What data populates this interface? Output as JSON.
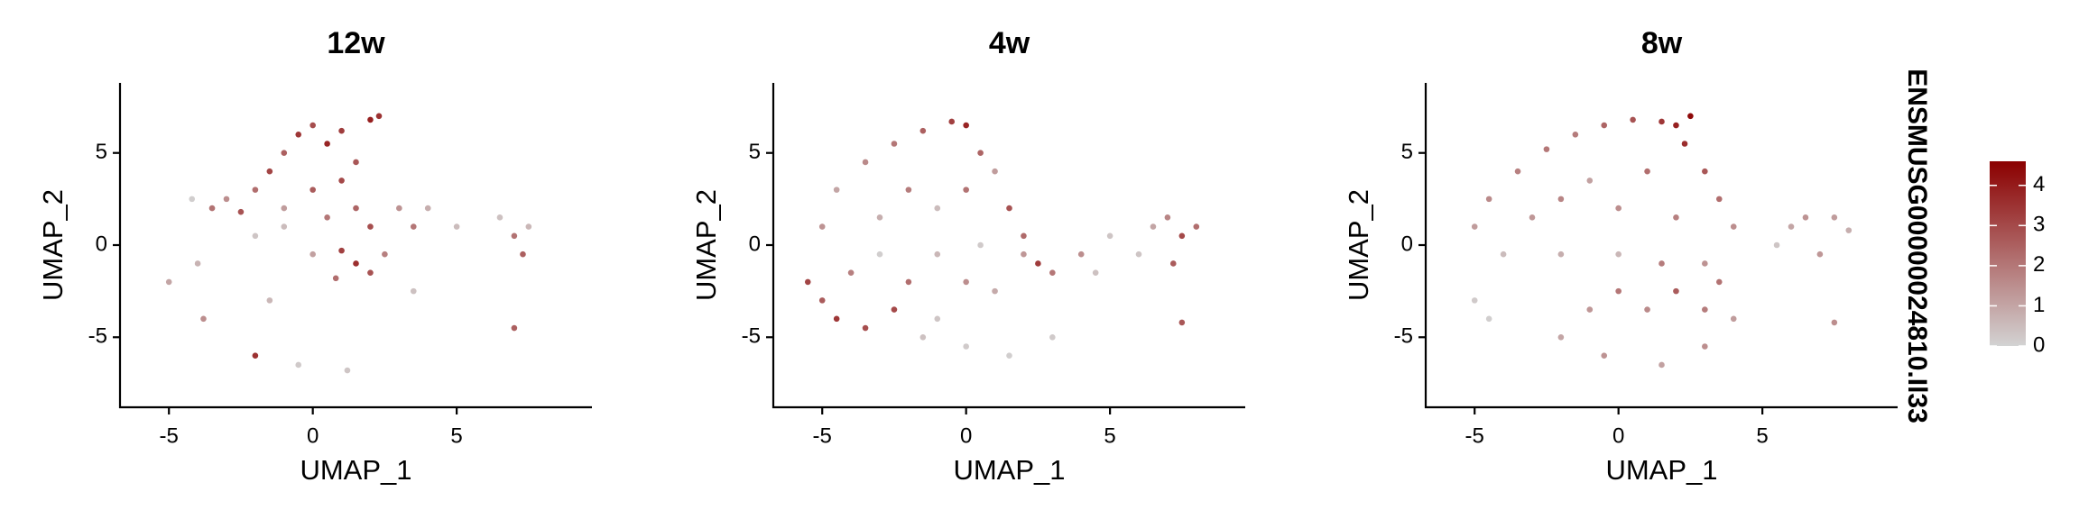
{
  "chart_data": [
    {
      "type": "scatter",
      "title": "12w",
      "x_label": "UMAP_1",
      "y_label": "UMAP_2",
      "xlim": [
        -6.7,
        9.7
      ],
      "ylim": [
        -8.8,
        8.8
      ],
      "xticks": [
        -5,
        0,
        5
      ],
      "yticks": [
        -5,
        0,
        5
      ],
      "x": [
        -3.5,
        -3,
        -2.5,
        -2,
        -1.5,
        -1,
        -0.5,
        0,
        0.5,
        1,
        1.5,
        2,
        2.3,
        -1,
        0,
        0.5,
        1,
        1.5,
        2,
        -2,
        -1,
        0,
        1,
        1.5,
        2,
        0.8,
        2.5,
        3,
        3.5,
        4,
        5,
        6.5,
        7,
        7.5,
        7.3,
        -4,
        -5,
        -3.8,
        -2,
        -0.5,
        1.2,
        7,
        3.5,
        -1.5,
        -4.2
      ],
      "y": [
        2,
        2.5,
        1.8,
        3,
        4,
        5,
        6,
        6.5,
        5.5,
        6.2,
        4.5,
        6.8,
        7,
        2,
        3,
        1.5,
        3.5,
        2,
        1,
        0.5,
        1,
        -0.5,
        -0.3,
        -1,
        -1.5,
        -1.8,
        -0.5,
        2,
        1,
        2,
        1,
        1.5,
        0.5,
        1,
        -0.5,
        -1,
        -2,
        -4,
        -6,
        -6.5,
        -6.8,
        -4.5,
        -2.5,
        -3,
        2.5
      ],
      "values": [
        2.1,
        1.5,
        2.8,
        2.2,
        3.1,
        2.5,
        3.4,
        2.9,
        3.8,
        3.3,
        2.7,
        3.9,
        3.5,
        1.2,
        2.6,
        2.0,
        3.0,
        2.4,
        2.9,
        0.3,
        0.5,
        1.1,
        3.2,
        3.6,
        2.8,
        2.2,
        1.8,
        1.4,
        2.0,
        0.8,
        0.5,
        0.4,
        2.1,
        0.6,
        2.5,
        0.7,
        1.0,
        1.5,
        3.5,
        0.2,
        0.3,
        2.5,
        0.4,
        0.6,
        0.1
      ]
    },
    {
      "type": "scatter",
      "title": "4w",
      "x_label": "UMAP_1",
      "y_label": "UMAP_2",
      "xlim": [
        -6.7,
        9.7
      ],
      "ylim": [
        -8.8,
        8.8
      ],
      "xticks": [
        -5,
        0,
        5
      ],
      "yticks": [
        -5,
        0,
        5
      ],
      "x": [
        -5.5,
        -5,
        -4.5,
        -3.5,
        -2.5,
        -2,
        -4,
        -5,
        -4.5,
        -3.5,
        -2.5,
        -1.5,
        -0.5,
        0,
        0.5,
        1,
        1.5,
        2,
        2.5,
        3,
        4,
        4.5,
        5,
        -3,
        -2,
        -1,
        0,
        0.5,
        -1,
        0,
        1,
        -1,
        0,
        1.5,
        -1.5,
        3,
        6.5,
        7,
        7.5,
        8,
        7.2,
        6,
        7.5,
        2,
        -3
      ],
      "y": [
        -2,
        -3,
        -4,
        -4.5,
        -3.5,
        -2,
        -1.5,
        1,
        3,
        4.5,
        5.5,
        6.2,
        6.7,
        6.5,
        5,
        4,
        2,
        0.5,
        -1,
        -1.5,
        -0.5,
        -1.5,
        0.5,
        1.5,
        3,
        2,
        3,
        0,
        -0.5,
        -2,
        -2.5,
        -4,
        -5.5,
        -6,
        -5,
        -5,
        1,
        1.5,
        0.5,
        1,
        -1,
        -0.5,
        -4.2,
        -0.5,
        -0.5
      ],
      "values": [
        3.1,
        2.6,
        3.4,
        2.9,
        3.0,
        2.2,
        1.8,
        1.4,
        1.0,
        1.6,
        2.0,
        2.5,
        3.2,
        3.8,
        2.4,
        1.2,
        2.8,
        2.3,
        3.3,
        2.0,
        1.5,
        0.4,
        0.3,
        0.8,
        1.9,
        0.5,
        2.1,
        0.2,
        0.6,
        1.5,
        0.9,
        0.3,
        0.2,
        0.1,
        0.4,
        0.2,
        1.0,
        1.7,
        3.0,
        2.2,
        2.6,
        0.3,
        2.7,
        1.3,
        0.1
      ]
    },
    {
      "type": "scatter",
      "title": "8w",
      "x_label": "UMAP_1",
      "y_label": "UMAP_2",
      "xlim": [
        -6.7,
        9.7
      ],
      "ylim": [
        -8.8,
        8.8
      ],
      "xticks": [
        -5,
        0,
        5
      ],
      "yticks": [
        -5,
        0,
        5
      ],
      "x": [
        -5,
        -4.5,
        -3.5,
        -2.5,
        -1.5,
        -0.5,
        0.5,
        1.5,
        2,
        2.5,
        2.3,
        3,
        3.5,
        4,
        -3,
        -2,
        -1,
        0,
        1,
        2,
        -4,
        -2,
        0,
        1.5,
        3,
        0,
        2,
        3.5,
        -1,
        1,
        3,
        -2,
        -0.5,
        1.5,
        3,
        4,
        6,
        6.5,
        7.5,
        8,
        7,
        5.5,
        7.5,
        -5,
        -4.5
      ],
      "y": [
        1,
        2.5,
        4,
        5.2,
        6,
        6.5,
        6.8,
        6.7,
        6.5,
        7,
        5.5,
        4,
        2.5,
        1,
        1.5,
        2.5,
        3.5,
        2,
        4,
        1.5,
        -0.5,
        -0.5,
        -0.5,
        -1,
        -1,
        -2.5,
        -2.5,
        -2,
        -3.5,
        -3.5,
        -3.5,
        -5,
        -6,
        -6.5,
        -5.5,
        -4,
        1,
        1.5,
        1.5,
        0.8,
        -0.5,
        0,
        -4.2,
        -3,
        -4
      ],
      "values": [
        1.2,
        1.6,
        1.8,
        2.0,
        1.9,
        2.4,
        2.8,
        3.4,
        3.9,
        4.4,
        3.6,
        2.7,
        2.2,
        1.5,
        1.3,
        1.7,
        1.1,
        1.5,
        2.2,
        1.8,
        0.5,
        0.8,
        0.6,
        1.9,
        1.4,
        2.0,
        2.6,
        2.1,
        1.3,
        1.6,
        1.9,
        1.0,
        1.4,
        1.1,
        1.5,
        1.2,
        1.0,
        1.4,
        1.2,
        0.8,
        1.3,
        0.3,
        1.5,
        0.2,
        0.1
      ]
    }
  ],
  "colorbar": {
    "title": "ENSMUSG00000024810.Il33",
    "range": [
      0,
      4.6
    ],
    "ticks": [
      0,
      1,
      2,
      3,
      4
    ],
    "low": "#d3d3d3",
    "high": "#8b0000"
  }
}
